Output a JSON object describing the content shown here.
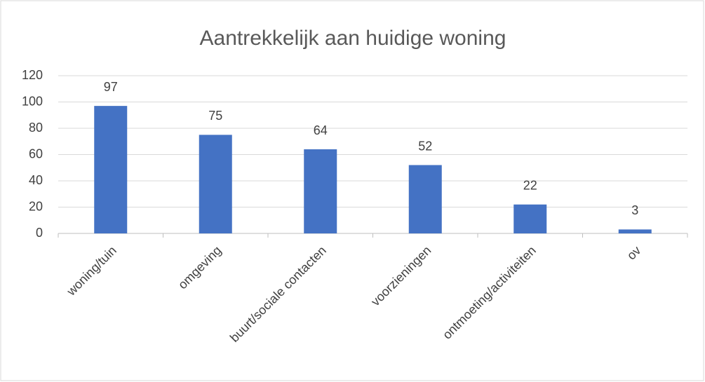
{
  "chart_data": {
    "type": "bar",
    "title": "Aantrekkelijk aan huidige woning",
    "categories": [
      "woning/tuin",
      "omgeving",
      "buurt/sociale contacten",
      "voorzieningen",
      "ontmoeting/activiteiten",
      "ov"
    ],
    "values": [
      97,
      75,
      64,
      52,
      22,
      3
    ],
    "color": "#4472c4",
    "ylim": [
      0,
      120
    ],
    "yticks": [
      0,
      20,
      40,
      60,
      80,
      100,
      120
    ],
    "grid": true
  }
}
